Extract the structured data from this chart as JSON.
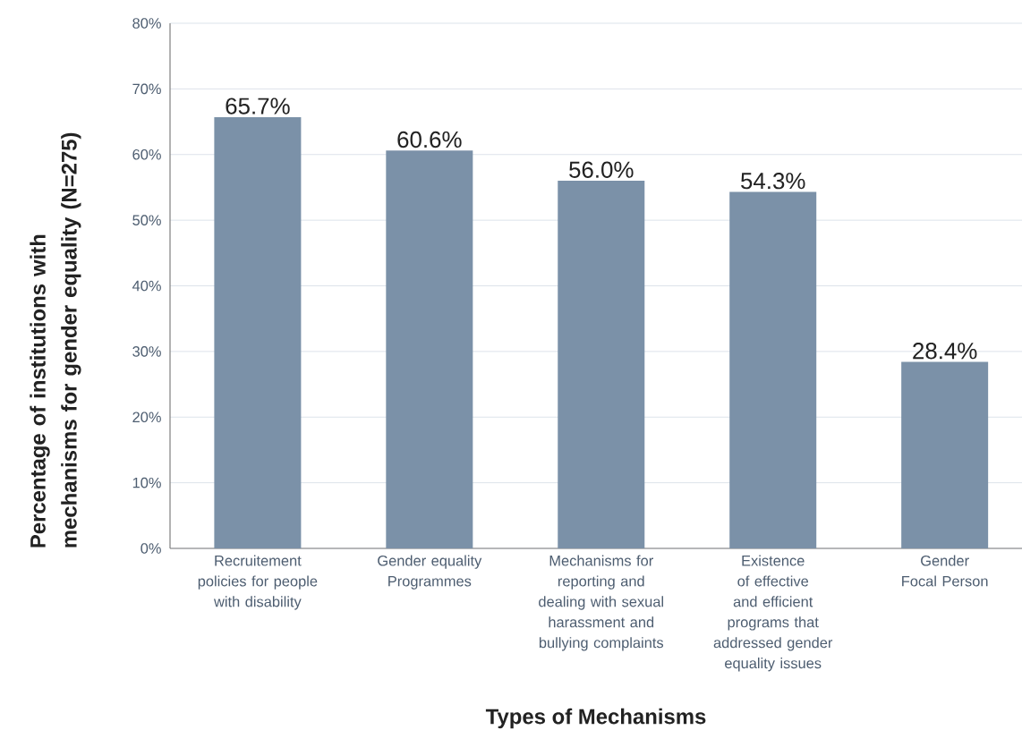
{
  "chart_data": {
    "type": "bar",
    "xlabel": "Types of Mechanisms",
    "ylabel": "Percentage of institutions with mechanisms for gender equality (N=275)",
    "categories": [
      "Recruitement policies for people with disability",
      "Gender equality Programmes",
      "Mechanisms for reporting and dealing with sexual harassment and bullying complaints",
      "Existence of effective and efficient programs that addressed gender equality issues",
      "Gender Focal Person"
    ],
    "values": [
      65.7,
      60.6,
      56.0,
      54.3,
      28.4
    ],
    "value_labels": [
      "65.7%",
      "60.6%",
      "56.0%",
      "54.3%",
      "28.4%"
    ],
    "color": "#7b91a8",
    "ylim": [
      0,
      80
    ],
    "yticks": [
      {
        "value": 0,
        "label": "0%"
      },
      {
        "value": 10,
        "label": "10%"
      },
      {
        "value": 20,
        "label": "20%"
      },
      {
        "value": 30,
        "label": "30%"
      },
      {
        "value": 40,
        "label": "40%"
      },
      {
        "value": 50,
        "label": "50%"
      },
      {
        "value": 60,
        "label": "60%"
      },
      {
        "value": 70,
        "label": "70%"
      },
      {
        "value": 80,
        "label": "80%"
      }
    ],
    "grid": "y"
  }
}
